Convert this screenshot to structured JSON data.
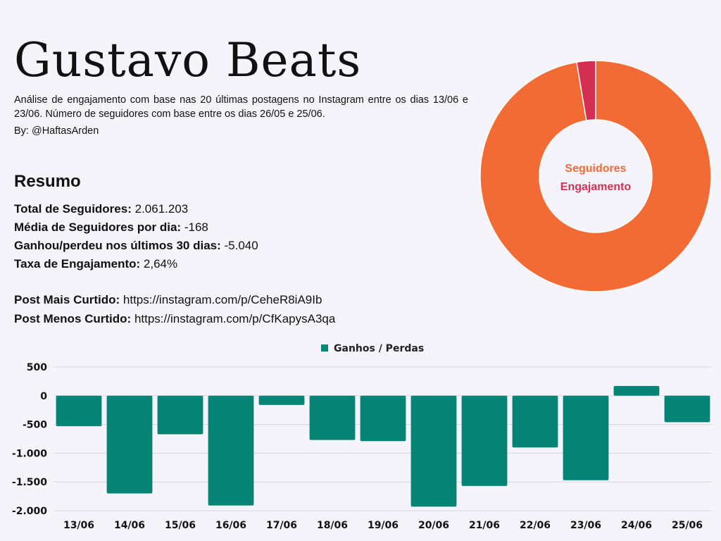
{
  "header": {
    "title": "Gustavo Beats",
    "subtitle": "Análise de engajamento com base nas 20 últimas postagens no Instagram entre os dias 13/06 e 23/06. Número de seguidores com base entre os dias 26/05 e 25/06.",
    "byline": "By: @HaftasArden"
  },
  "summary": {
    "heading": "Resumo",
    "rows": [
      {
        "label": "Total de Seguidores:",
        "value": "2.061.203"
      },
      {
        "label": "Média de Seguidores por dia:",
        "value": "-168"
      },
      {
        "label": "Ganhou/perdeu nos últimos 30 dias:",
        "value": "-5.040"
      },
      {
        "label": "Taxa de Engajamento:",
        "value": "2,64%"
      }
    ],
    "posts": [
      {
        "label": "Post Mais Curtido:",
        "value": "https://instagram.com/p/CeheR8iA9Ib"
      },
      {
        "label": "Post Menos Curtido:",
        "value": "https://instagram.com/p/CfKapysA3qa"
      }
    ]
  },
  "colors": {
    "seguidores": "#f26b35",
    "engajamento": "#d62e52",
    "bars": "#068577",
    "background": "#f5f4fb"
  },
  "chart_data": [
    {
      "type": "pie",
      "categories": [
        "Seguidores",
        "Engajamento"
      ],
      "values": [
        97.36,
        2.64
      ],
      "colors": [
        "#f26b35",
        "#d62e52"
      ]
    },
    {
      "type": "bar",
      "categories": [
        "13/06",
        "14/06",
        "15/06",
        "16/06",
        "17/06",
        "18/06",
        "19/06",
        "20/06",
        "21/06",
        "22/06",
        "23/06",
        "24/06",
        "25/06"
      ],
      "series": [
        {
          "name": "Ganhos / Perdas",
          "values": [
            -530,
            -1700,
            -670,
            -1910,
            -160,
            -770,
            -790,
            -1930,
            -1570,
            -900,
            -1470,
            170,
            -460
          ]
        }
      ],
      "ylim": [
        -2000,
        500
      ],
      "yticks": [
        500,
        0,
        -500,
        -1000,
        -1500,
        -2000
      ],
      "ytick_labels": [
        "500",
        "0",
        "-500",
        "-1.000",
        "-1.500",
        "-2.000"
      ],
      "grid": true,
      "legend": "top-center"
    }
  ]
}
